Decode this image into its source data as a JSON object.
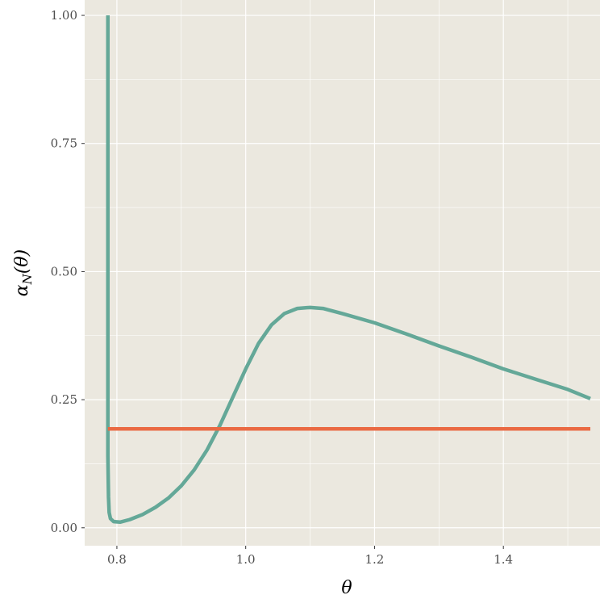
{
  "chart_data": {
    "type": "line",
    "title": "",
    "xlabel": "θ",
    "ylabel_main": "α",
    "ylabel_sub": "N",
    "ylabel_tail": "(θ)",
    "xlim": [
      0.75,
      1.55
    ],
    "ylim": [
      -0.035,
      1.03
    ],
    "x_ticks": [
      0.8,
      1.0,
      1.2,
      1.4
    ],
    "x_tick_labels": [
      "0.8",
      "1.0",
      "1.2",
      "1.4"
    ],
    "y_ticks": [
      0.0,
      0.25,
      0.5,
      0.75,
      1.0
    ],
    "y_tick_labels": [
      "0.00",
      "0.25",
      "0.50",
      "0.75",
      "1.00"
    ],
    "grid": true,
    "legend": "none",
    "colors": {
      "panel": "#ebe8df",
      "grid": "#ffffff",
      "teal": "#64a898",
      "orange": "#ea6a43"
    },
    "series": [
      {
        "color": "#64a898",
        "x": [
          0.786,
          0.786,
          0.786,
          0.786,
          0.787,
          0.788,
          0.79,
          0.795,
          0.805,
          0.82,
          0.84,
          0.86,
          0.88,
          0.9,
          0.92,
          0.94,
          0.96,
          0.98,
          1.0,
          1.02,
          1.04,
          1.06,
          1.08,
          1.1,
          1.12,
          1.15,
          1.2,
          1.25,
          1.3,
          1.35,
          1.4,
          1.45,
          1.5,
          1.535
        ],
        "y": [
          1.0,
          0.6,
          0.3,
          0.14,
          0.06,
          0.03,
          0.018,
          0.012,
          0.011,
          0.016,
          0.026,
          0.04,
          0.058,
          0.082,
          0.113,
          0.152,
          0.2,
          0.255,
          0.31,
          0.36,
          0.396,
          0.418,
          0.428,
          0.43,
          0.428,
          0.418,
          0.4,
          0.378,
          0.355,
          0.333,
          0.31,
          0.29,
          0.27,
          0.252
        ]
      },
      {
        "color": "#ea6a43",
        "x": [
          0.786,
          1.535
        ],
        "y": [
          0.193,
          0.193
        ]
      }
    ]
  }
}
